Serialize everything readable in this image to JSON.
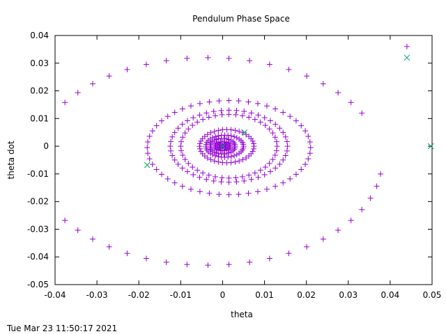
{
  "chart_data": {
    "type": "scatter",
    "title": "Pendulum Phase Space",
    "xlabel": "theta",
    "ylabel": "theta dot",
    "xlim": [
      -0.04,
      0.05
    ],
    "ylim": [
      -0.05,
      0.04
    ],
    "x_ticks": [
      "-0.04",
      "-0.03",
      "-0.02",
      "-0.01",
      "0",
      "0.01",
      "0.02",
      "0.03",
      "0.04",
      "0.05"
    ],
    "y_ticks": [
      "-0.05",
      "-0.04",
      "-0.03",
      "-0.02",
      "-0.01",
      "0",
      "0.01",
      "0.02",
      "0.03",
      "0.04"
    ],
    "grid": false,
    "legend": "none",
    "footer": "Tue Mar 23 11:50:17 2021",
    "series": [
      {
        "marker": "plus",
        "color": "#9400d3",
        "rings": [
          {
            "cx": -0.0035,
            "cy": -0.0055,
            "a": 0.0415,
            "b": 0.0375,
            "n": 52,
            "skip_from": 0.0,
            "skip_to": 0.06
          },
          {
            "cx": 0.0015,
            "cy": -0.0005,
            "a": 0.0195,
            "b": 0.017,
            "n": 52
          },
          {
            "cx": 0.0015,
            "cy": 0.0,
            "a": 0.014,
            "b": 0.013,
            "n": 48
          },
          {
            "cx": 0.0015,
            "cy": 0.0,
            "a": 0.0115,
            "b": 0.0115,
            "n": 44
          },
          {
            "cx": 0.001,
            "cy": 0.0,
            "a": 0.0065,
            "b": 0.006,
            "n": 40
          },
          {
            "cx": 0.0005,
            "cy": 0.0,
            "a": 0.0045,
            "b": 0.004,
            "n": 36
          },
          {
            "cx": 0.0,
            "cy": 0.0,
            "a": 0.003,
            "b": 0.0028,
            "n": 30
          },
          {
            "cx": 0.0,
            "cy": 0.0,
            "a": 0.0018,
            "b": 0.0016,
            "n": 24
          },
          {
            "cx": 0.0,
            "cy": 0.0,
            "a": 0.0008,
            "b": 0.0008,
            "n": 16
          }
        ],
        "points": [
          [
            0.044,
            0.036
          ]
        ]
      },
      {
        "marker": "cross",
        "color": "#009e73",
        "points": [
          [
            0.044,
            0.032
          ],
          [
            0.0497,
            0.0
          ],
          [
            -0.018,
            -0.0068
          ],
          [
            0.0052,
            0.005
          ],
          [
            0.0,
            0.0
          ]
        ]
      }
    ]
  }
}
